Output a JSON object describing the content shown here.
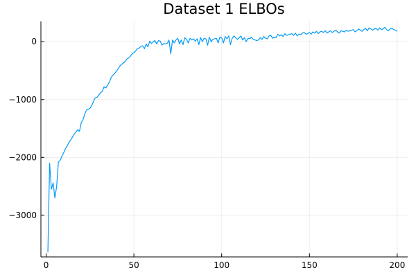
{
  "chart_data": {
    "type": "line",
    "title": "Dataset 1 ELBOs",
    "xlabel": "",
    "ylabel": "",
    "xlim": [
      -2.97,
      205.97
    ],
    "ylim": [
      -3720,
      350
    ],
    "grid": true,
    "legend": "none",
    "x_ticks": [
      0,
      50,
      100,
      150,
      200
    ],
    "x_tick_labels": [
      "0",
      "50",
      "100",
      "150",
      "200"
    ],
    "y_ticks": [
      -3000,
      -2000,
      -1000,
      0
    ],
    "y_tick_labels": [
      "−3000",
      "−2000",
      "−1000",
      "0"
    ],
    "series": [
      {
        "color": "#009af9",
        "values": [
          -3640,
          -2100,
          -2550,
          -2440,
          -2700,
          -2500,
          -2080,
          -2050,
          -1980,
          -1920,
          -1850,
          -1800,
          -1740,
          -1700,
          -1650,
          -1600,
          -1560,
          -1520,
          -1550,
          -1400,
          -1350,
          -1250,
          -1180,
          -1170,
          -1150,
          -1100,
          -1030,
          -970,
          -960,
          -920,
          -880,
          -860,
          -780,
          -800,
          -750,
          -700,
          -620,
          -580,
          -550,
          -510,
          -470,
          -420,
          -390,
          -370,
          -340,
          -300,
          -280,
          -250,
          -210,
          -190,
          -160,
          -120,
          -110,
          -80,
          -70,
          -120,
          -40,
          -90,
          10,
          -30,
          0,
          20,
          -40,
          20,
          10,
          -60,
          -30,
          -40,
          -30,
          30,
          -210,
          30,
          -20,
          30,
          60,
          -40,
          30,
          -50,
          70,
          40,
          -20,
          60,
          30,
          50,
          10,
          50,
          -50,
          70,
          0,
          60,
          50,
          -60,
          80,
          0,
          40,
          50,
          60,
          -20,
          80,
          70,
          -20,
          90,
          50,
          100,
          -50,
          60,
          100,
          70,
          40,
          70,
          100,
          30,
          70,
          0,
          60,
          50,
          80,
          40,
          30,
          20,
          30,
          70,
          40,
          90,
          60,
          50,
          100,
          110,
          60,
          80,
          70,
          130,
          100,
          120,
          90,
          140,
          110,
          120,
          130,
          140,
          110,
          150,
          100,
          130,
          120,
          150,
          160,
          130,
          140,
          160,
          130,
          170,
          150,
          180,
          140,
          170,
          180,
          160,
          190,
          150,
          170,
          190,
          160,
          180,
          200,
          170,
          150,
          190,
          180,
          170,
          200,
          180,
          190,
          200,
          210,
          170,
          190,
          220,
          200,
          180,
          210,
          230,
          190,
          240,
          220,
          200,
          220,
          230,
          200,
          240,
          210,
          220,
          250,
          210,
          190,
          220,
          230,
          210,
          200,
          180
        ]
      }
    ]
  }
}
